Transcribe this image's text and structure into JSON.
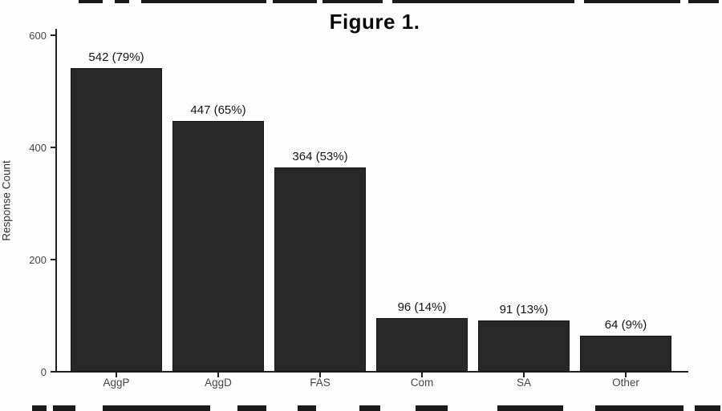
{
  "title": "Figure 1.",
  "chart_data": {
    "type": "bar",
    "title": "Figure 1.",
    "xlabel": "",
    "ylabel": "Response Count",
    "categories": [
      "AggP",
      "AggD",
      "FAS",
      "Com",
      "SA",
      "Other"
    ],
    "values": [
      542,
      447,
      364,
      96,
      91,
      64
    ],
    "bar_labels": [
      "542 (79%)",
      "447 (65%)",
      "364 (53%)",
      "96 (14%)",
      "91 (13%)",
      "64 (9%)"
    ],
    "percentages": [
      79,
      65,
      53,
      14,
      13,
      9
    ],
    "ylim": [
      0,
      600
    ],
    "yticks": [
      0,
      200,
      400,
      600
    ],
    "grid": false,
    "legend": "none",
    "bar_color": "#282828",
    "axis_color": "#222222",
    "tick_label_color": "#454545",
    "background": "#fefefe"
  },
  "crop_artifacts": {
    "description": "partially cropped rows of black text at image top and bottom edges",
    "color": "#1b1b1b",
    "top_segments": [
      [
        98,
        128
      ],
      [
        143,
        161
      ],
      [
        176,
        332
      ],
      [
        340,
        395
      ],
      [
        402,
        477
      ],
      [
        489,
        716
      ],
      [
        728,
        848
      ],
      [
        858,
        896
      ]
    ],
    "bottom_segments": [
      [
        40,
        58
      ],
      [
        66,
        94
      ],
      [
        128,
        262
      ],
      [
        296,
        332
      ],
      [
        371,
        394
      ],
      [
        448,
        474
      ],
      [
        518,
        558
      ],
      [
        620,
        702
      ],
      [
        742,
        852
      ],
      [
        866,
        898
      ]
    ]
  }
}
